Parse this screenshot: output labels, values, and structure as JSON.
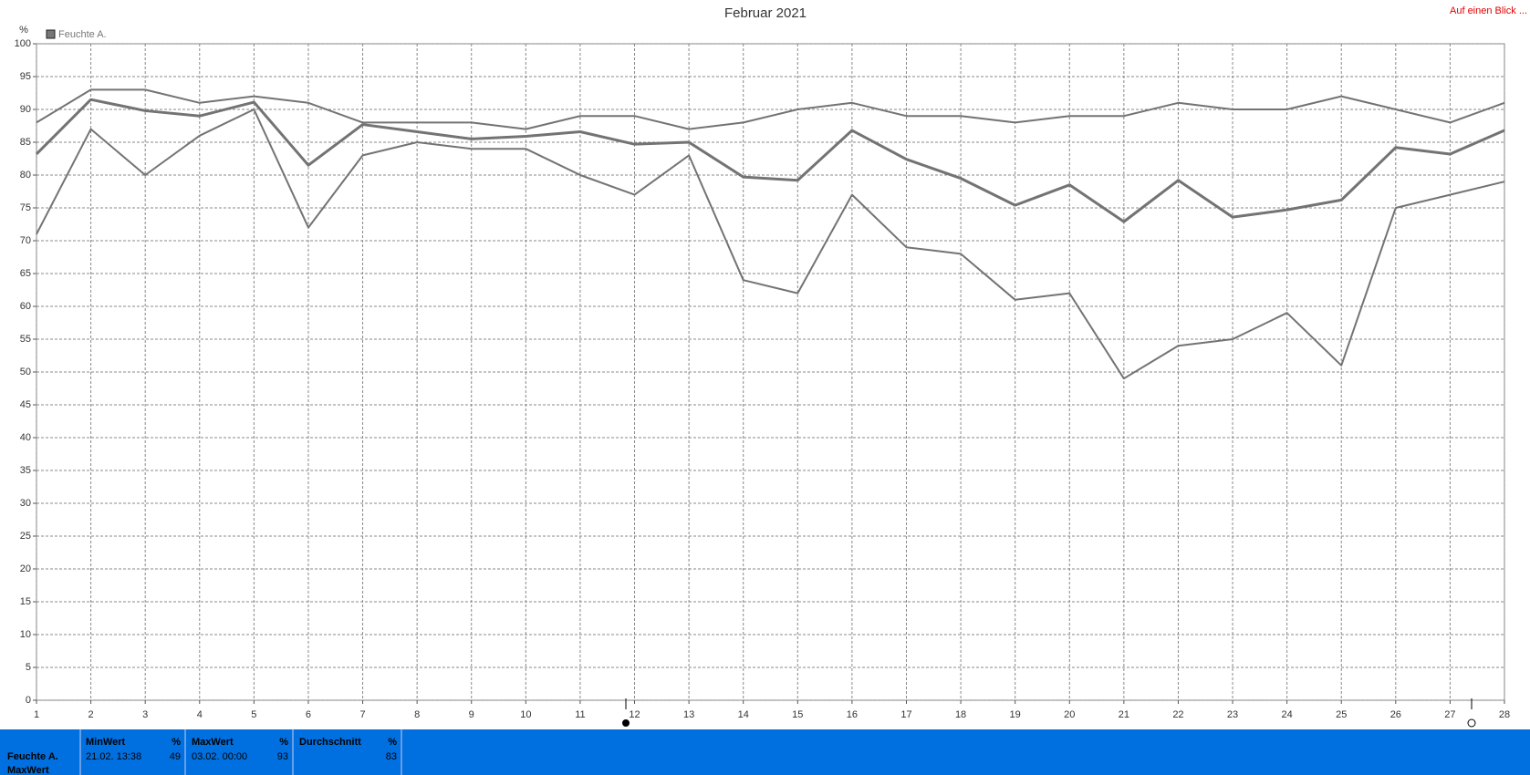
{
  "chart_data": {
    "type": "line",
    "title": "Februar 2021",
    "corner_link": "Auf einen Blick ...",
    "ylabel": "%",
    "legend": "Feuchte A.",
    "x": [
      1,
      2,
      3,
      4,
      5,
      6,
      7,
      8,
      9,
      10,
      11,
      12,
      13,
      14,
      15,
      16,
      17,
      18,
      19,
      20,
      21,
      22,
      23,
      24,
      25,
      26,
      27,
      28
    ],
    "xlim": [
      1,
      28
    ],
    "xticks": [
      1,
      2,
      3,
      4,
      5,
      6,
      7,
      8,
      9,
      10,
      11,
      12,
      13,
      14,
      15,
      16,
      17,
      18,
      19,
      20,
      21,
      22,
      23,
      24,
      25,
      26,
      27,
      28
    ],
    "ylim": [
      0,
      100
    ],
    "yticks": [
      0,
      5,
      10,
      15,
      20,
      25,
      30,
      35,
      40,
      45,
      50,
      55,
      60,
      65,
      70,
      75,
      80,
      85,
      90,
      95,
      100
    ],
    "grid": true,
    "series": [
      {
        "color": "#737373",
        "width": 2,
        "values": [
          88,
          93,
          93,
          91,
          92,
          91,
          88,
          88,
          88,
          87,
          89,
          89,
          87,
          88,
          90,
          91,
          89,
          89,
          88,
          89,
          89,
          91,
          90,
          90,
          92,
          90,
          88,
          91
        ]
      },
      {
        "color": "#737373",
        "width": 3,
        "values": [
          83.2,
          91.5,
          89.8,
          89,
          91.1,
          81.5,
          87.7,
          86.6,
          85.5,
          85.9,
          86.6,
          84.7,
          85,
          79.7,
          79.2,
          86.8,
          82.4,
          79.5,
          75.4,
          78.5,
          72.9,
          79.2,
          73.6,
          74.7,
          76.2,
          84.2,
          83.2,
          86.8
        ]
      },
      {
        "color": "#737373",
        "width": 2,
        "values": [
          71,
          87,
          80,
          86,
          90,
          72,
          83,
          85,
          84,
          84,
          80,
          77,
          83,
          64,
          62,
          77,
          69,
          68,
          61,
          62,
          49,
          54,
          55,
          59,
          51,
          75,
          77,
          79
        ]
      }
    ]
  },
  "summary": {
    "row_label": "Feuchte A.",
    "row_label_2": "MaxWert",
    "columns": [
      {
        "header": "MinWert",
        "unit": "%",
        "time": "21.02.  13:38",
        "value": "49"
      },
      {
        "header": "MaxWert",
        "unit": "%",
        "time": "03.02.  00:00",
        "value": "93"
      },
      {
        "header": "Durchschnitt",
        "unit": "%",
        "time": "",
        "value": "83"
      }
    ]
  }
}
